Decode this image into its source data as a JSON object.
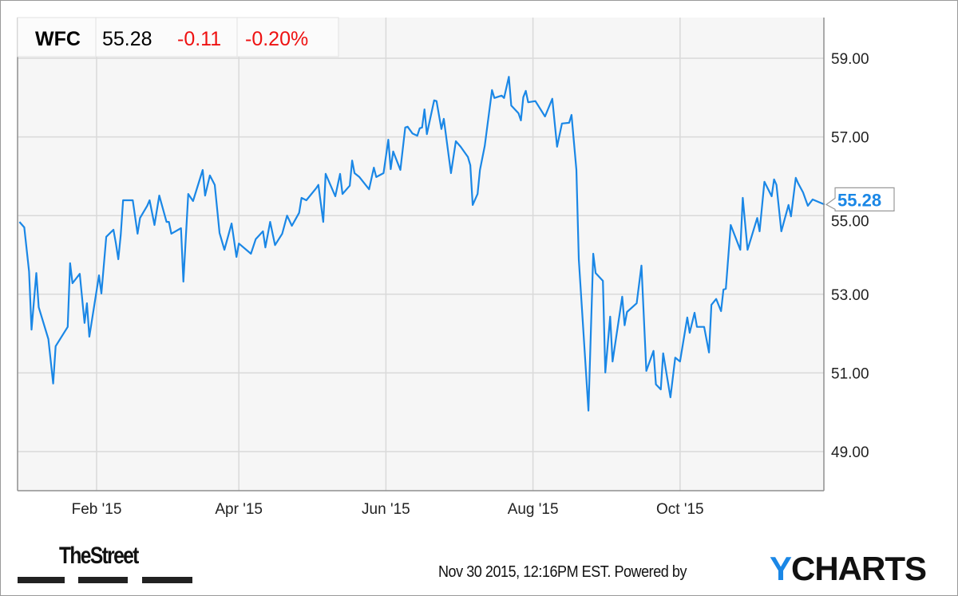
{
  "header": {
    "ticker": "WFC",
    "price": "55.28",
    "change": "-0.11",
    "change_pct": "-0.20%"
  },
  "colors": {
    "line": "#1a87e6",
    "negative": "#ee1111",
    "grid": "#d9d9d9",
    "plot_bg": "#f6f6f6",
    "ycharts_y": "#1a87e6"
  },
  "footer": {
    "brand_left": "TheStreet",
    "timestamp": "Nov 30 2015, 12:16PM EST.",
    "powered_by": "Powered by",
    "brand_right_first": "Y",
    "brand_right_rest": "CHARTS"
  },
  "chart_data": {
    "type": "line",
    "title": "",
    "xlabel": "",
    "ylabel": "",
    "xlim": [
      "2014-12-31",
      "2015-11-30"
    ],
    "ylim": [
      48.1,
      60.0
    ],
    "y_axis_position": "right",
    "grid": true,
    "x_ticks": [
      {
        "date": "2015-02-01",
        "label": "Feb '15"
      },
      {
        "date": "2015-04-01",
        "label": "Apr '15"
      },
      {
        "date": "2015-06-01",
        "label": "Jun '15"
      },
      {
        "date": "2015-08-01",
        "label": "Aug '15"
      },
      {
        "date": "2015-10-01",
        "label": "Oct '15"
      }
    ],
    "y_ticks": [
      {
        "value": 49,
        "label": "49.00"
      },
      {
        "value": 51,
        "label": "51.00"
      },
      {
        "value": 53,
        "label": "53.00"
      },
      {
        "value": 55,
        "label": "55.00"
      },
      {
        "value": 57,
        "label": "57.00"
      },
      {
        "value": 59,
        "label": "59.00"
      }
    ],
    "last_value_label": "55.28",
    "series": [
      {
        "points": [
          [
            "2014-12-31",
            54.84
          ],
          [
            "2015-01-02",
            54.7
          ],
          [
            "2015-01-04",
            53.58
          ],
          [
            "2015-01-05",
            52.1
          ],
          [
            "2015-01-07",
            53.54
          ],
          [
            "2015-01-08",
            52.67
          ],
          [
            "2015-01-12",
            51.86
          ],
          [
            "2015-01-14",
            50.73
          ],
          [
            "2015-01-15",
            51.68
          ],
          [
            "2015-01-20",
            52.17
          ],
          [
            "2015-01-21",
            53.79
          ],
          [
            "2015-01-22",
            53.28
          ],
          [
            "2015-01-25",
            53.52
          ],
          [
            "2015-01-27",
            52.27
          ],
          [
            "2015-01-28",
            52.77
          ],
          [
            "2015-01-29",
            51.92
          ],
          [
            "2015-02-02",
            53.48
          ],
          [
            "2015-02-03",
            53.02
          ],
          [
            "2015-02-05",
            54.46
          ],
          [
            "2015-02-08",
            54.64
          ],
          [
            "2015-02-09",
            54.29
          ],
          [
            "2015-02-10",
            53.89
          ],
          [
            "2015-02-11",
            54.5
          ],
          [
            "2015-02-12",
            55.39
          ],
          [
            "2015-02-16",
            55.39
          ],
          [
            "2015-02-18",
            54.54
          ],
          [
            "2015-02-19",
            54.94
          ],
          [
            "2015-02-22",
            55.25
          ],
          [
            "2015-02-23",
            55.39
          ],
          [
            "2015-02-25",
            54.76
          ],
          [
            "2015-02-27",
            55.51
          ],
          [
            "2015-03-02",
            54.84
          ],
          [
            "2015-03-03",
            54.84
          ],
          [
            "2015-03-04",
            54.54
          ],
          [
            "2015-03-08",
            54.68
          ],
          [
            "2015-03-09",
            53.32
          ],
          [
            "2015-03-11",
            55.55
          ],
          [
            "2015-03-13",
            55.37
          ],
          [
            "2015-03-17",
            56.16
          ],
          [
            "2015-03-18",
            55.51
          ],
          [
            "2015-03-20",
            56.02
          ],
          [
            "2015-03-22",
            55.78
          ],
          [
            "2015-03-24",
            54.56
          ],
          [
            "2015-03-26",
            54.13
          ],
          [
            "2015-03-29",
            54.8
          ],
          [
            "2015-03-31",
            53.95
          ],
          [
            "2015-04-01",
            54.29
          ],
          [
            "2015-04-06",
            54.03
          ],
          [
            "2015-04-08",
            54.4
          ],
          [
            "2015-04-11",
            54.6
          ],
          [
            "2015-04-12",
            54.19
          ],
          [
            "2015-04-14",
            54.84
          ],
          [
            "2015-04-16",
            54.25
          ],
          [
            "2015-04-19",
            54.54
          ],
          [
            "2015-04-21",
            55.0
          ],
          [
            "2015-04-23",
            54.74
          ],
          [
            "2015-04-26",
            55.07
          ],
          [
            "2015-04-27",
            55.45
          ],
          [
            "2015-04-29",
            55.39
          ],
          [
            "2015-05-03",
            55.69
          ],
          [
            "2015-05-04",
            55.78
          ],
          [
            "2015-05-06",
            54.84
          ],
          [
            "2015-05-07",
            56.06
          ],
          [
            "2015-05-11",
            55.49
          ],
          [
            "2015-05-13",
            56.06
          ],
          [
            "2015-05-14",
            55.55
          ],
          [
            "2015-05-17",
            55.76
          ],
          [
            "2015-05-18",
            56.4
          ],
          [
            "2015-05-19",
            56.08
          ],
          [
            "2015-05-21",
            55.98
          ],
          [
            "2015-05-25",
            55.67
          ],
          [
            "2015-05-27",
            56.22
          ],
          [
            "2015-05-28",
            55.98
          ],
          [
            "2015-05-31",
            56.08
          ],
          [
            "2015-06-02",
            56.93
          ],
          [
            "2015-06-03",
            56.18
          ],
          [
            "2015-06-04",
            56.63
          ],
          [
            "2015-06-07",
            56.16
          ],
          [
            "2015-06-09",
            57.24
          ],
          [
            "2015-06-10",
            57.26
          ],
          [
            "2015-06-12",
            57.09
          ],
          [
            "2015-06-14",
            57.03
          ],
          [
            "2015-06-15",
            57.22
          ],
          [
            "2015-06-16",
            57.24
          ],
          [
            "2015-06-17",
            57.7
          ],
          [
            "2015-06-18",
            57.07
          ],
          [
            "2015-06-21",
            57.93
          ],
          [
            "2015-06-22",
            57.91
          ],
          [
            "2015-06-24",
            57.2
          ],
          [
            "2015-06-25",
            57.46
          ],
          [
            "2015-06-28",
            56.08
          ],
          [
            "2015-06-30",
            56.89
          ],
          [
            "2015-07-02",
            56.75
          ],
          [
            "2015-07-05",
            56.49
          ],
          [
            "2015-07-06",
            56.28
          ],
          [
            "2015-07-07",
            55.27
          ],
          [
            "2015-07-09",
            55.55
          ],
          [
            "2015-07-10",
            56.16
          ],
          [
            "2015-07-12",
            56.77
          ],
          [
            "2015-07-15",
            58.19
          ],
          [
            "2015-07-16",
            57.99
          ],
          [
            "2015-07-19",
            58.05
          ],
          [
            "2015-07-20",
            57.99
          ],
          [
            "2015-07-22",
            58.53
          ],
          [
            "2015-07-23",
            57.8
          ],
          [
            "2015-07-26",
            57.6
          ],
          [
            "2015-07-27",
            57.42
          ],
          [
            "2015-07-28",
            58.01
          ],
          [
            "2015-07-29",
            58.17
          ],
          [
            "2015-07-30",
            57.88
          ],
          [
            "2015-08-02",
            57.91
          ],
          [
            "2015-08-06",
            57.52
          ],
          [
            "2015-08-09",
            57.97
          ],
          [
            "2015-08-11",
            56.75
          ],
          [
            "2015-08-13",
            57.34
          ],
          [
            "2015-08-16",
            57.36
          ],
          [
            "2015-08-17",
            57.56
          ],
          [
            "2015-08-19",
            56.16
          ],
          [
            "2015-08-20",
            53.89
          ],
          [
            "2015-08-24",
            50.04
          ],
          [
            "2015-08-26",
            54.03
          ],
          [
            "2015-08-27",
            53.54
          ],
          [
            "2015-08-30",
            53.34
          ],
          [
            "2015-08-31",
            51.01
          ],
          [
            "2015-09-02",
            52.43
          ],
          [
            "2015-09-03",
            51.29
          ],
          [
            "2015-09-07",
            52.94
          ],
          [
            "2015-09-08",
            52.21
          ],
          [
            "2015-09-09",
            52.55
          ],
          [
            "2015-09-13",
            52.77
          ],
          [
            "2015-09-15",
            53.73
          ],
          [
            "2015-09-17",
            51.05
          ],
          [
            "2015-09-20",
            51.56
          ],
          [
            "2015-09-21",
            50.71
          ],
          [
            "2015-09-23",
            50.58
          ],
          [
            "2015-09-24",
            51.5
          ],
          [
            "2015-09-27",
            50.38
          ],
          [
            "2015-09-29",
            51.39
          ],
          [
            "2015-10-01",
            51.29
          ],
          [
            "2015-10-04",
            52.41
          ],
          [
            "2015-10-05",
            52.02
          ],
          [
            "2015-10-07",
            52.53
          ],
          [
            "2015-10-08",
            52.17
          ],
          [
            "2015-10-11",
            52.17
          ],
          [
            "2015-10-13",
            51.52
          ],
          [
            "2015-10-14",
            52.73
          ],
          [
            "2015-10-16",
            52.88
          ],
          [
            "2015-10-18",
            52.57
          ],
          [
            "2015-10-19",
            53.12
          ],
          [
            "2015-10-20",
            53.14
          ],
          [
            "2015-10-22",
            54.76
          ],
          [
            "2015-10-26",
            54.13
          ],
          [
            "2015-10-27",
            55.45
          ],
          [
            "2015-10-29",
            54.13
          ],
          [
            "2015-11-02",
            54.94
          ],
          [
            "2015-11-03",
            54.6
          ],
          [
            "2015-11-05",
            55.86
          ],
          [
            "2015-11-08",
            55.49
          ],
          [
            "2015-11-09",
            55.92
          ],
          [
            "2015-11-10",
            55.78
          ],
          [
            "2015-11-12",
            54.6
          ],
          [
            "2015-11-15",
            55.27
          ],
          [
            "2015-11-16",
            54.98
          ],
          [
            "2015-11-18",
            55.96
          ],
          [
            "2015-11-19",
            55.82
          ],
          [
            "2015-11-21",
            55.59
          ],
          [
            "2015-11-23",
            55.25
          ],
          [
            "2015-11-25",
            55.41
          ],
          [
            "2015-11-30",
            55.28
          ]
        ]
      }
    ]
  }
}
